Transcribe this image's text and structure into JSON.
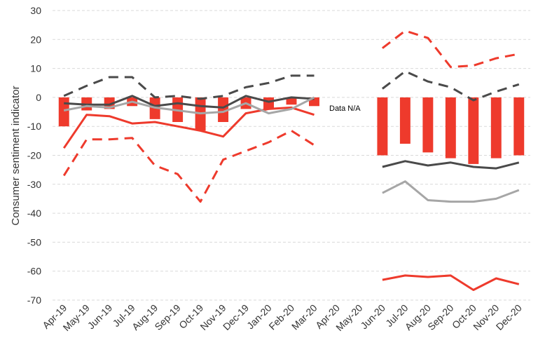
{
  "chart_data": {
    "type": "bar",
    "ylabel": "Consumer sentiment indicator",
    "xlabel": "",
    "ylim": [
      -70,
      30
    ],
    "yticks": [
      30,
      20,
      10,
      0,
      -10,
      -20,
      -30,
      -40,
      -50,
      -60,
      -70
    ],
    "grid": true,
    "legend": "none",
    "categories": [
      "Apr-19",
      "May-19",
      "Jun-19",
      "Jul-19",
      "Aug-19",
      "Sep-19",
      "Oct-19",
      "Nov-19",
      "Dec-19",
      "Jan-20",
      "Feb-20",
      "Mar-20",
      "Apr-20",
      "May-20",
      "Jun-20",
      "Jul-20",
      "Aug-20",
      "Sep-20",
      "Oct-20",
      "Nov-20",
      "Dec-20"
    ],
    "annotation": "Data N/A",
    "bars": {
      "color": "#ee3a2c",
      "values": [
        -10,
        -4.5,
        -4,
        -3,
        -7.5,
        -8.5,
        -11.5,
        -8.5,
        -4,
        -4,
        -2.5,
        -3,
        null,
        null,
        -20,
        -16,
        -19,
        -21,
        -23,
        -21,
        -20
      ]
    },
    "series": [
      {
        "style": "solid",
        "color": "#ee3a2c",
        "values": [
          -17.5,
          -6,
          -6.5,
          -9,
          -8.5,
          -10,
          -11.5,
          -13.5,
          -5.5,
          -4,
          -3.5,
          -6,
          null,
          null,
          -63,
          -61.5,
          -62,
          -61.5,
          -66.5,
          -62.5,
          -64.5
        ]
      },
      {
        "style": "dashed",
        "color": "#ee3a2c",
        "values": [
          -27,
          -14.5,
          -14.5,
          -14,
          -23.5,
          -26.5,
          -36,
          -21.5,
          -18.5,
          -15.5,
          -11.5,
          -16.5,
          null,
          null,
          17,
          23,
          20.5,
          10.5,
          11,
          13.5,
          15
        ]
      },
      {
        "style": "solid",
        "color": "#4a4a4a",
        "values": [
          -2,
          -2.5,
          -2.5,
          0.5,
          -3,
          -2,
          -3,
          -3.5,
          0.5,
          -1.5,
          0,
          -0.5,
          null,
          null,
          -24,
          -22,
          -23.5,
          -22.5,
          -24,
          -24.5,
          -22.5
        ]
      },
      {
        "style": "dashed",
        "color": "#4a4a4a",
        "values": [
          0.5,
          4,
          7,
          7,
          0,
          0.5,
          -0.5,
          0.5,
          3.5,
          5,
          7.5,
          7.5,
          null,
          null,
          3,
          9,
          5.5,
          3.5,
          -1,
          2,
          4.5
        ]
      },
      {
        "style": "solid",
        "color": "#a6a6a6",
        "values": [
          -4.5,
          -3,
          -3.5,
          -1.5,
          -3.5,
          -4.5,
          -5.5,
          -5,
          -2,
          -5.5,
          -4,
          0,
          null,
          null,
          -33,
          -29,
          -35.5,
          -36,
          -36,
          -35,
          -32
        ]
      }
    ]
  }
}
